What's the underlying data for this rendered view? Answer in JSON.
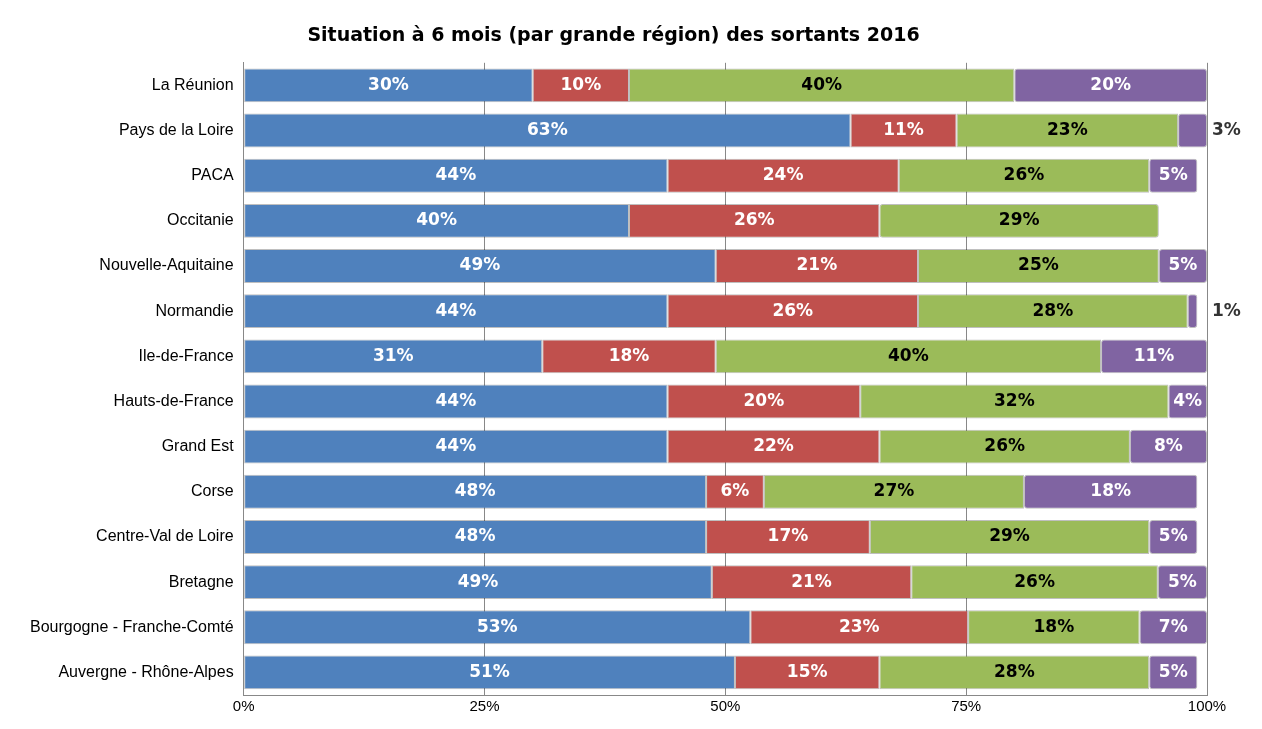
{
  "chart_data": {
    "type": "bar",
    "orientation": "horizontal",
    "stacked": true,
    "title": "Situation à 6 mois (par grande région) des sortants 2016",
    "categories": [
      "La Réunion",
      "Pays de la Loire",
      "PACA",
      "Occitanie",
      "Nouvelle-Aquitaine",
      "Normandie",
      "Ile-de-France",
      "Hauts-de-France",
      "Grand Est",
      "Corse",
      "Centre-Val de Loire",
      "Bretagne",
      "Bourgogne - Franche-Comté",
      "Auvergne - Rhône-Alpes"
    ],
    "series": [
      {
        "color": "#4f81bd",
        "values": [
          30,
          63,
          44,
          40,
          49,
          44,
          31,
          44,
          44,
          48,
          48,
          48.6,
          52.6,
          51
        ],
        "value_labels": [
          "30%",
          "63%",
          "44%",
          "40%",
          "49%",
          "44%",
          "31%",
          "44%",
          "44%",
          "48%",
          "48%",
          "49%",
          "53%",
          "51%"
        ]
      },
      {
        "color": "#c0504d",
        "values": [
          10,
          11,
          24,
          26,
          21,
          26,
          18,
          20,
          22,
          6,
          17,
          20.7,
          22.6,
          15
        ],
        "value_labels": [
          "10%",
          "11%",
          "24%",
          "26%",
          "21%",
          "26%",
          "18%",
          "20%",
          "22%",
          "6%",
          "17%",
          "21%",
          "23%",
          "15%"
        ]
      },
      {
        "color": "#9bbb59",
        "values": [
          40,
          23,
          26,
          29,
          25,
          28,
          40,
          32,
          26,
          27,
          29,
          25.6,
          17.8,
          28
        ],
        "value_labels": [
          "40%",
          "23%",
          "26%",
          "29%",
          "25%",
          "28%",
          "40%",
          "32%",
          "26%",
          "27%",
          "29%",
          "26%",
          "18%",
          "28%"
        ]
      },
      {
        "color": "#8064a2",
        "values": [
          20,
          3,
          5,
          null,
          5,
          1,
          11,
          4,
          8,
          18,
          5,
          5.1,
          7,
          5
        ],
        "value_labels": [
          "20%",
          "3%",
          "5%",
          null,
          "5%",
          "1%",
          "11%",
          "4%",
          "8%",
          "18%",
          "5%",
          "5%",
          "7%",
          "5%"
        ]
      }
    ],
    "xlim": [
      0,
      100
    ],
    "xticks": [
      {
        "value": 0,
        "label": "0%"
      },
      {
        "value": 25,
        "label": "25%"
      },
      {
        "value": 50,
        "label": "50%"
      },
      {
        "value": 75,
        "label": "75%"
      },
      {
        "value": 100,
        "label": "100%"
      }
    ],
    "grid": "x",
    "legend": false
  }
}
